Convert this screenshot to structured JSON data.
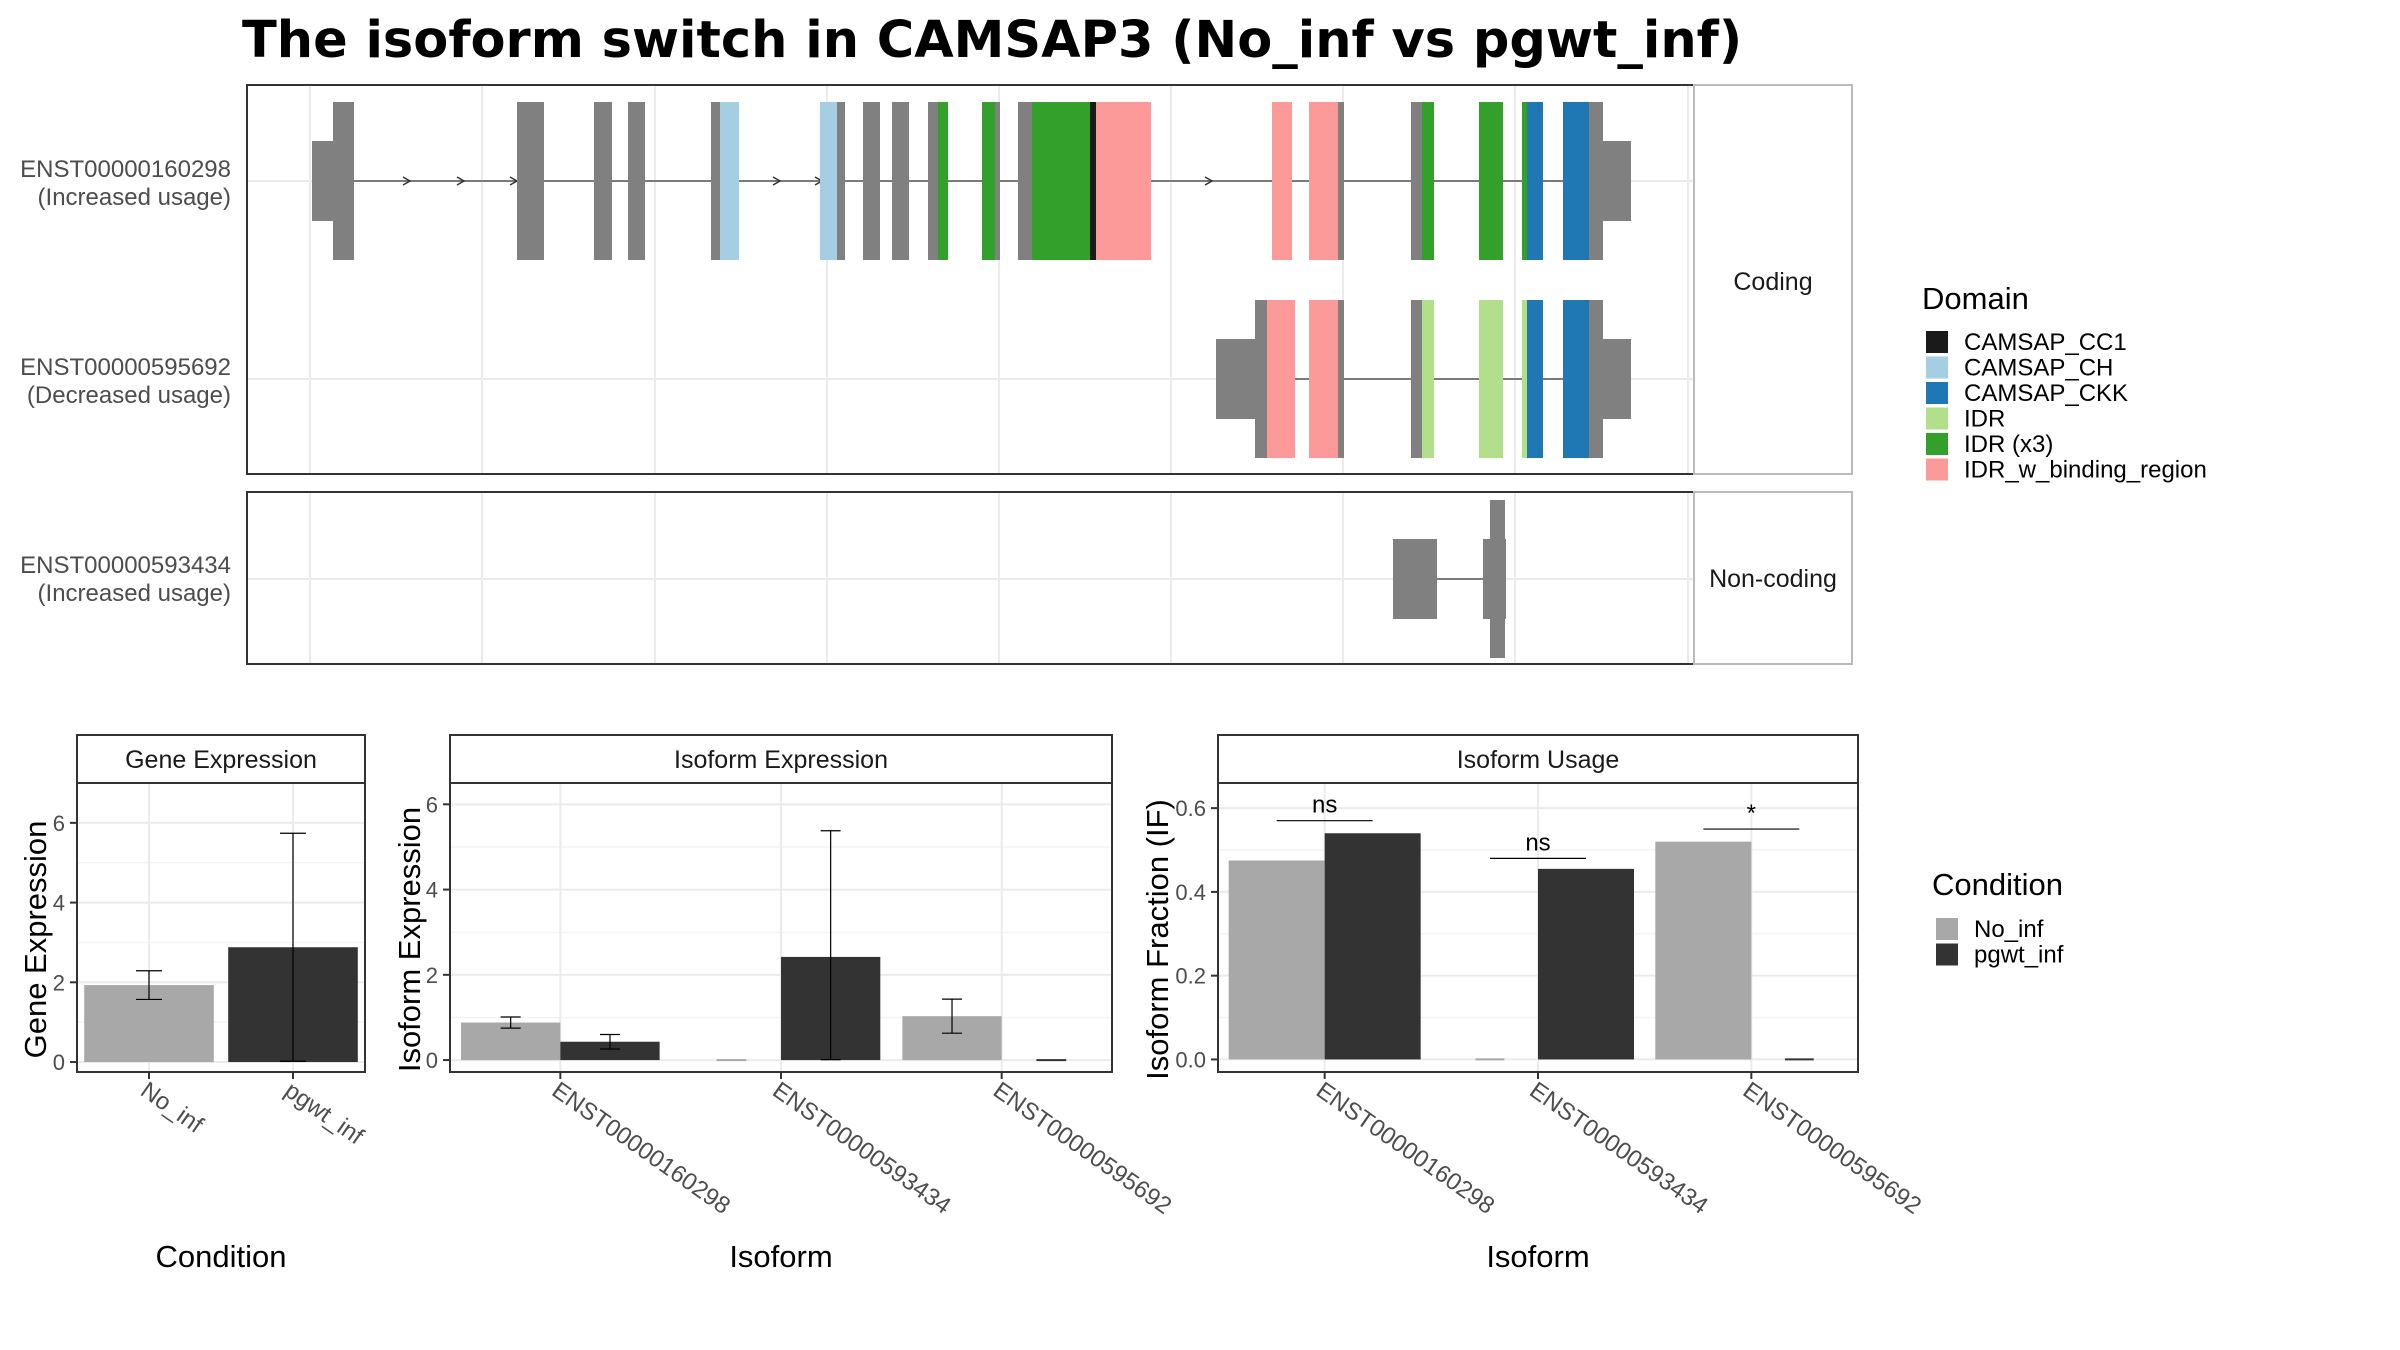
{
  "title": "The isoform switch in CAMSAP3 (No_inf vs pgwt_inf)",
  "colors": {
    "grey_exon": "#808080",
    "No_inf": "#A8A8A8",
    "pgwt_inf": "#333333",
    "CAMSAP_CC1": "#1A1A1A",
    "CAMSAP_CH": "#A6CEE3",
    "CAMSAP_CKK": "#1F78B4",
    "IDR": "#B2DF8A",
    "IDR (x3)": "#33A02C",
    "IDR_w_binding_region": "#FB9A99"
  },
  "panels": {
    "coding": {
      "strip": "Coding",
      "rows": [
        {
          "id": "ENST00000160298",
          "note": "(Increased usage)"
        },
        {
          "id": "ENST00000595692",
          "note": "(Decreased usage)"
        }
      ]
    },
    "noncoding": {
      "strip": "Non-coding",
      "rows": [
        {
          "id": "ENST00000593434",
          "note": "(Increased usage)"
        }
      ]
    }
  },
  "legends": {
    "domain": {
      "title": "Domain",
      "items": [
        "CAMSAP_CC1",
        "CAMSAP_CH",
        "CAMSAP_CKK",
        "IDR",
        "IDR (x3)",
        "IDR_w_binding_region"
      ]
    },
    "condition": {
      "title": "Condition",
      "items": [
        "No_inf",
        "pgwt_inf"
      ]
    }
  },
  "chart_data": [
    {
      "type": "bar",
      "title": "Gene Expression",
      "xlabel": "Condition",
      "ylabel": "Gene Expression",
      "categories": [
        "No_inf",
        "pgwt_inf"
      ],
      "values": [
        1.93,
        2.88
      ],
      "error_low": [
        1.57,
        0.02
      ],
      "error_high": [
        2.29,
        5.74
      ],
      "ylim": [
        -0.25,
        7.0
      ],
      "yticks": [
        0,
        2,
        4,
        6
      ]
    },
    {
      "type": "bar",
      "title": "Isoform Expression",
      "xlabel": "Isoform",
      "ylabel": "Isoform Expression",
      "categories": [
        "ENST00000160298",
        "ENST00000593434",
        "ENST00000595692"
      ],
      "series": [
        {
          "name": "No_inf",
          "values": [
            0.88,
            0.0,
            1.03
          ],
          "error_low": [
            0.75,
            0.0,
            0.63
          ],
          "error_high": [
            1.01,
            0.0,
            1.43
          ]
        },
        {
          "name": "pgwt_inf",
          "values": [
            0.43,
            2.42,
            0.0
          ],
          "error_low": [
            0.26,
            0.01,
            0.0
          ],
          "error_high": [
            0.6,
            5.38,
            0.0
          ]
        }
      ],
      "ylim": [
        -0.28,
        6.5
      ],
      "yticks": [
        0,
        2,
        4,
        6
      ]
    },
    {
      "type": "bar",
      "title": "Isoform Usage",
      "xlabel": "Isoform",
      "ylabel": "Isoform Fraction (IF)",
      "categories": [
        "ENST00000160298",
        "ENST00000593434",
        "ENST00000595692"
      ],
      "series": [
        {
          "name": "No_inf",
          "values": [
            0.475,
            0.0,
            0.52
          ]
        },
        {
          "name": "pgwt_inf",
          "values": [
            0.54,
            0.455,
            0.0
          ]
        }
      ],
      "annotations": [
        {
          "label": "ns",
          "y": 0.57
        },
        {
          "label": "ns",
          "y": 0.48
        },
        {
          "label": "*",
          "y": 0.55
        }
      ],
      "ylim": [
        -0.03,
        0.66
      ],
      "yticks": [
        "0.0",
        "0.2",
        "0.4",
        "0.6"
      ]
    }
  ]
}
